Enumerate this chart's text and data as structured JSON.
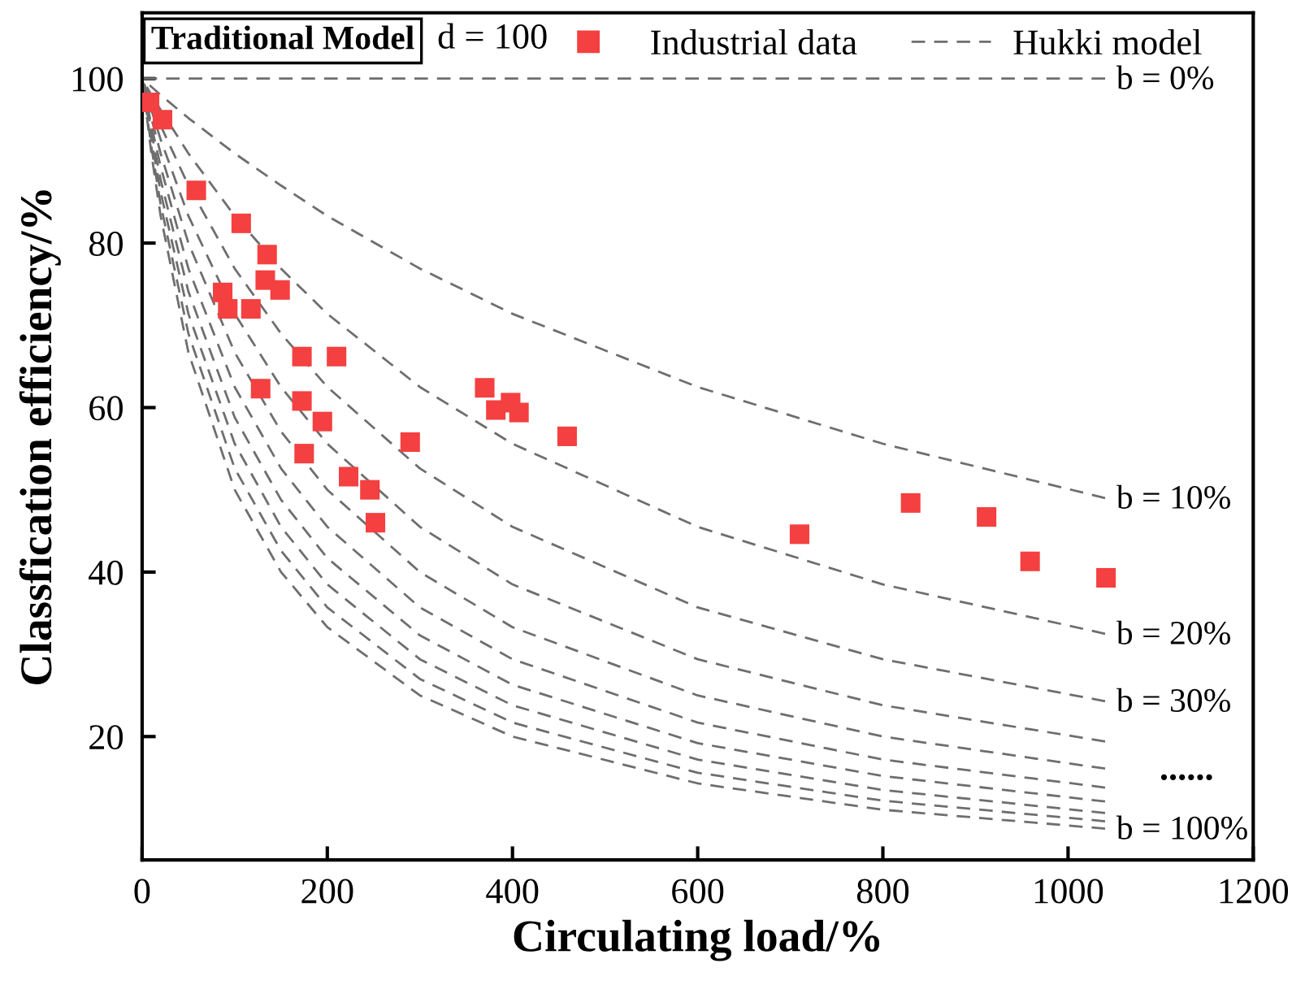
{
  "chart_data": {
    "type": "line",
    "title": "Traditional Model",
    "xlabel": "Circulating load/%",
    "ylabel": "Classfication efficiency/%",
    "legend_title": "Hukki model",
    "xlim": [
      0,
      1200
    ],
    "ylim": [
      5,
      108
    ],
    "xticks": [
      0,
      200,
      400,
      600,
      800,
      1000,
      1200
    ],
    "yticks": [
      20,
      40,
      60,
      80,
      100
    ],
    "grid": false,
    "legend": "top",
    "line_style": "dashed",
    "marker": "none",
    "x": [
      0,
      10,
      20,
      50,
      100,
      150,
      200,
      300,
      400,
      600,
      800,
      1040
    ],
    "series": [
      {
        "type": "scatter",
        "name": "Industrial data",
        "color": "#f44040",
        "marker": "square",
        "x": [
          8,
          22,
          58.5,
          107,
          135,
          133,
          149,
          87,
          92.5,
          117.5,
          172.6,
          210,
          128,
          172.6,
          194.7,
          175,
          289.5,
          370,
          382,
          398,
          407,
          459,
          223,
          246,
          252,
          710,
          830,
          912,
          959,
          1041
        ],
        "values": [
          97.1,
          95.0,
          86.4,
          82.4,
          78.6,
          75.5,
          74.3,
          74.0,
          72.0,
          72.0,
          66.2,
          66.2,
          62.3,
          60.8,
          58.3,
          54.4,
          55.8,
          62.4,
          59.7,
          60.6,
          59.4,
          56.5,
          51.6,
          50.0,
          46.0,
          44.6,
          48.4,
          46.7,
          41.3,
          39.3
        ]
      },
      {
        "name": "b = 0%",
        "color": "#6e6e6e",
        "values": [
          100,
          100,
          100,
          100,
          100,
          100,
          100,
          100,
          100,
          100,
          100,
          100
        ]
      },
      {
        "name": "b = 10%",
        "color": "#6e6e6e",
        "values": [
          100,
          99.0,
          98.0,
          95.2,
          90.9,
          87.0,
          83.3,
          76.9,
          71.4,
          62.5,
          55.6,
          49.0
        ]
      },
      {
        "name": "b = 20%",
        "color": "#6e6e6e",
        "values": [
          100,
          98.0,
          96.2,
          90.9,
          83.3,
          76.9,
          71.4,
          62.5,
          55.6,
          45.5,
          38.5,
          32.5
        ]
      },
      {
        "name": "b = 30%",
        "color": "#6e6e6e",
        "values": [
          100,
          97.1,
          94.3,
          87.0,
          76.9,
          69.0,
          62.5,
          52.6,
          45.5,
          35.7,
          29.4,
          24.3
        ]
      },
      {
        "color": "#6e6e6e",
        "values": [
          100,
          96.2,
          92.6,
          83.3,
          71.4,
          62.5,
          55.6,
          45.5,
          38.5,
          29.4,
          23.8,
          19.4
        ]
      },
      {
        "color": "#6e6e6e",
        "values": [
          100,
          95.2,
          90.9,
          80.0,
          66.7,
          57.1,
          50.0,
          40.0,
          33.3,
          25.0,
          20.0,
          16.1
        ]
      },
      {
        "color": "#6e6e6e",
        "values": [
          100,
          94.3,
          89.3,
          76.9,
          62.5,
          52.6,
          45.5,
          35.7,
          29.4,
          21.7,
          17.2,
          13.8
        ]
      },
      {
        "color": "#6e6e6e",
        "values": [
          100,
          93.5,
          87.7,
          74.1,
          58.8,
          48.8,
          41.7,
          32.3,
          26.3,
          19.2,
          15.2,
          12.1
        ]
      },
      {
        "color": "#6e6e6e",
        "values": [
          100,
          92.6,
          86.2,
          71.4,
          55.6,
          45.5,
          38.5,
          29.4,
          23.8,
          17.2,
          13.5,
          10.7
        ]
      },
      {
        "color": "#6e6e6e",
        "values": [
          100,
          91.7,
          84.7,
          69.0,
          52.6,
          42.6,
          35.7,
          27.0,
          21.7,
          15.6,
          12.2,
          9.7
        ]
      },
      {
        "name": "b = 100%",
        "color": "#6e6e6e",
        "values": [
          100,
          90.9,
          83.3,
          66.7,
          50.0,
          40.0,
          33.3,
          25.0,
          20.0,
          14.3,
          11.1,
          8.8
        ]
      }
    ],
    "annotations": [
      "d = 100",
      "......"
    ]
  }
}
